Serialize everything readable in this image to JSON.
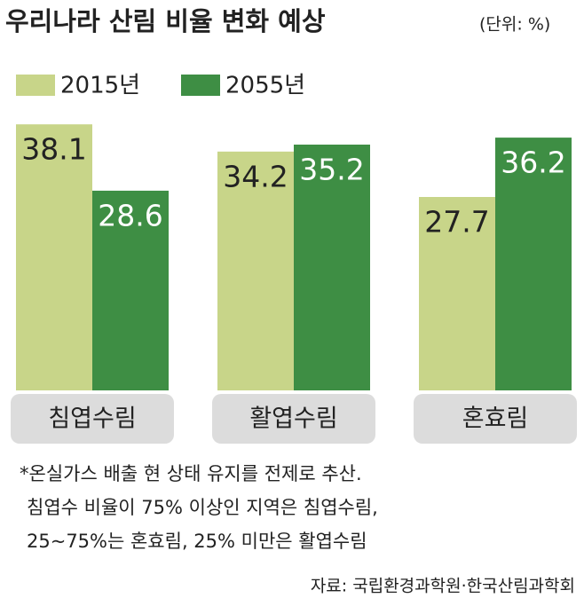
{
  "chart_data": {
    "type": "bar",
    "title": "우리나라 산림 비율 변화 예상",
    "subtitle": "(단위: %)",
    "categories": [
      "침엽수림",
      "활엽수림",
      "혼효림"
    ],
    "series": [
      {
        "name": "2015년",
        "color": "#c8d589",
        "values": [
          38.1,
          34.2,
          27.7
        ]
      },
      {
        "name": "2055년",
        "color": "#3e8e44",
        "values": [
          28.6,
          35.2,
          36.2
        ]
      }
    ],
    "notes": [
      "*온실가스 배출 현 상태 유지를 전제로 추산.",
      "침엽수 비율이 75% 이상인 지역은 침엽수림,",
      "25~75%는 혼효림, 25% 미만은 활엽수림"
    ],
    "source": "자료: 국립환경과학원·한국산림과학회"
  }
}
